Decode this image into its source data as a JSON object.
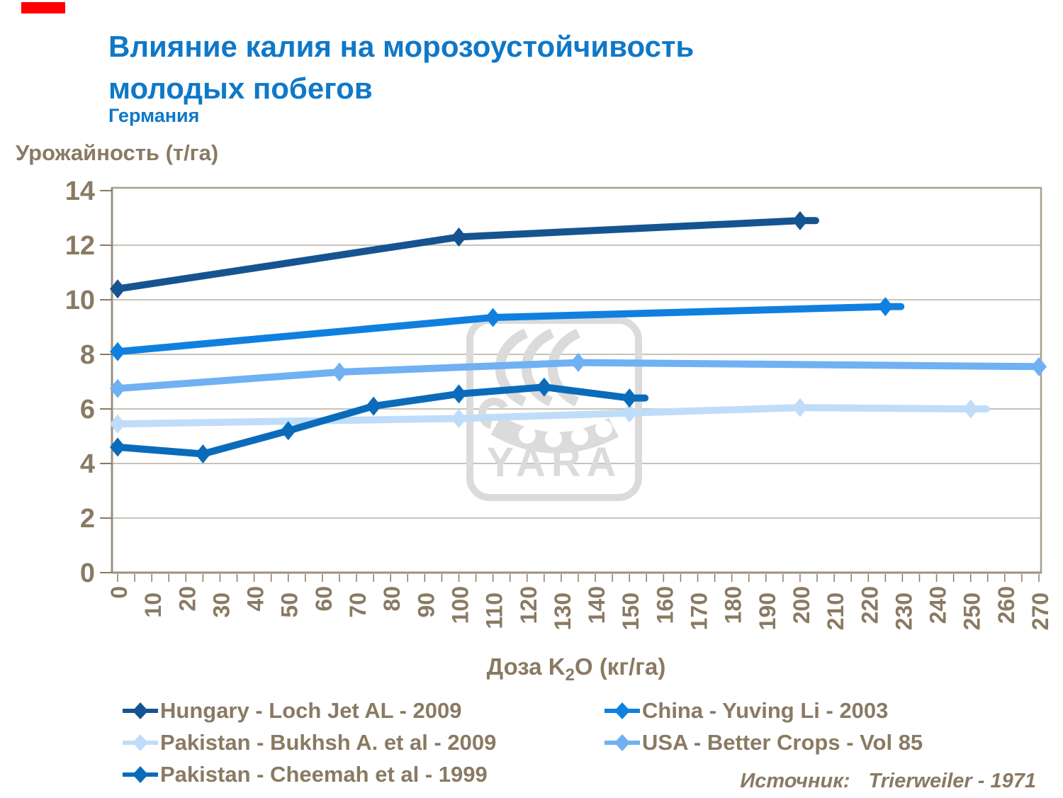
{
  "slide": {
    "title_line1": "Влияние калия на морозоустойчивость",
    "title_line2": "молодых побегов",
    "subtitle": "Германия",
    "source_label": "Источник:",
    "source_value": "Trierweiler - 1971",
    "accent_bar_color": "#FF0000"
  },
  "colors": {
    "title_blue": "#0F78C8",
    "text_brown": "#8A7A63",
    "gridline": "#B7AFA1",
    "frame": "#A79E8E",
    "axis_line": "#9A9080",
    "watermark_gray": "#DBDBDB"
  },
  "watermark": {
    "text": "YARA"
  },
  "chart_data": {
    "type": "line",
    "title": "Влияние калия на морозоустойчивость молодых побегов (Германия)",
    "ylabel": "Урожайность (т/га)",
    "xlabel": "Доза K2O (кг/га)",
    "xlabel_parts": {
      "prefix": "Доза K",
      "sub": "2",
      "suffix": "O (кг/га)"
    },
    "grid": "horizontal",
    "legend_position": "bottom",
    "x_axis": {
      "min": 0,
      "max": 270,
      "tick_step": 10,
      "minor_tick_step": 5,
      "ticks": [
        "0",
        "10",
        "20",
        "30",
        "40",
        "50",
        "60",
        "70",
        "80",
        "90",
        "100",
        "110",
        "120",
        "130",
        "140",
        "150",
        "160",
        "170",
        "180",
        "190",
        "200",
        "210",
        "220",
        "230",
        "240",
        "250",
        "260",
        "270"
      ]
    },
    "y_axis": {
      "min": 0,
      "max": 14,
      "tick_step": 2,
      "ticks": [
        "0",
        "2",
        "4",
        "6",
        "8",
        "10",
        "12",
        "14"
      ]
    },
    "series": [
      {
        "id": "hungary",
        "name": "Hungary - Loch Jet AL - 2009",
        "color": "#155490",
        "x": [
          0,
          100,
          200
        ],
        "y": [
          10.4,
          12.3,
          12.9
        ],
        "end_stub": true
      },
      {
        "id": "china",
        "name": "China - Yuving Li - 2003",
        "color": "#0F80E0",
        "x": [
          0,
          110,
          225
        ],
        "y": [
          8.1,
          9.35,
          9.75
        ],
        "end_stub": true
      },
      {
        "id": "bukhsh",
        "name": "Pakistan - Bukhsh A. et al - 2009",
        "color": "#BFDDF9",
        "x": [
          0,
          100,
          150,
          200,
          250
        ],
        "y": [
          5.45,
          5.65,
          5.85,
          6.05,
          6.0
        ],
        "end_stub": true
      },
      {
        "id": "usa",
        "name": "USA - Better Crops - Vol 85",
        "color": "#6FB1F2",
        "x": [
          0,
          65,
          135,
          270
        ],
        "y": [
          6.75,
          7.35,
          7.7,
          7.55
        ],
        "end_stub": false
      },
      {
        "id": "cheemah",
        "name": "Pakistan - Cheemah et al - 1999",
        "color": "#0B6BBB",
        "x": [
          0,
          25,
          50,
          75,
          100,
          125,
          150
        ],
        "y": [
          4.6,
          4.35,
          5.2,
          6.1,
          6.55,
          6.8,
          6.4
        ],
        "end_stub": true
      }
    ]
  }
}
